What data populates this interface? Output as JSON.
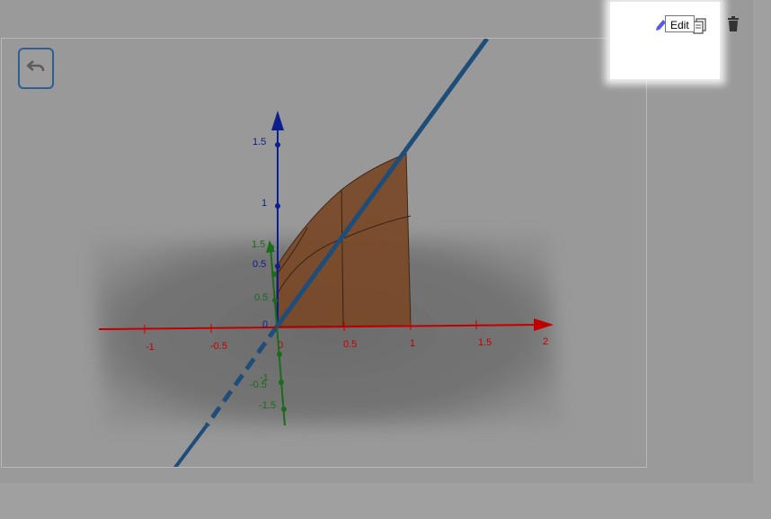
{
  "toolbar": {
    "edit_tooltip": "Edit",
    "icons": [
      "pencil-icon",
      "copy-icon",
      "trash-icon"
    ]
  },
  "applet": {
    "undo_icon": "undo-icon",
    "axes": {
      "x": {
        "color": "#c00000",
        "ticks": [
          "-1",
          "-0.5",
          "0",
          "0.5",
          "1",
          "1.5",
          "2"
        ]
      },
      "y": {
        "color": "#1a6b1a",
        "ticks": [
          "1.5",
          "0.5",
          "-0.5",
          "-1",
          "-1.5"
        ]
      },
      "z": {
        "color": "#0b1f8f",
        "ticks": [
          "1.5",
          "1",
          "0.5",
          "0"
        ]
      }
    },
    "surface_color": "#7a4a2a",
    "line_color": "#1e4d7a"
  }
}
